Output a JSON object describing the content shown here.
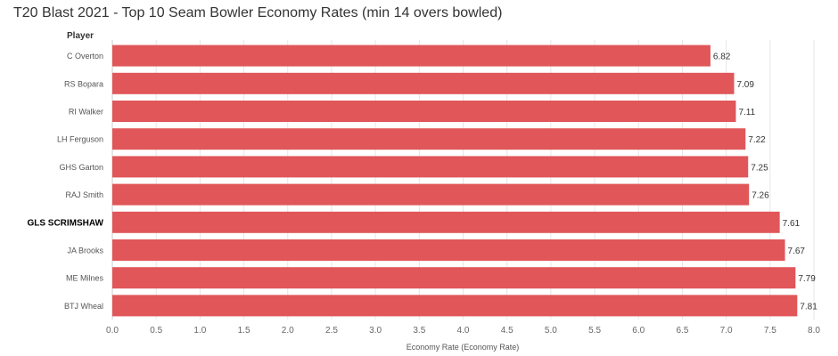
{
  "chart_data": {
    "type": "bar",
    "orientation": "horizontal",
    "title": "T20 Blast 2021 - Top 10 Seam Bowler Economy Rates (min 14 overs bowled)",
    "ylabel": "Player",
    "xlabel": "Economy Rate (Economy Rate)",
    "categories": [
      "C Overton",
      "RS Bopara",
      "RI Walker",
      "LH Ferguson",
      "GHS Garton",
      "RAJ Smith",
      "GLS SCRIMSHAW",
      "JA Brooks",
      "ME Milnes",
      "BTJ Wheal"
    ],
    "values": [
      6.82,
      7.09,
      7.11,
      7.22,
      7.25,
      7.26,
      7.61,
      7.67,
      7.79,
      7.81
    ],
    "data_labels": [
      "6.82",
      "7.09",
      "7.11",
      "7.22",
      "7.25",
      "7.26",
      "7.61",
      "7.67",
      "7.79",
      "7.81"
    ],
    "highlighted_category": "GLS SCRIMSHAW",
    "xlim": [
      0,
      8
    ],
    "x_ticks": [
      "0.0",
      "0.5",
      "1.0",
      "1.5",
      "2.0",
      "2.5",
      "3.0",
      "3.5",
      "4.0",
      "4.5",
      "5.0",
      "5.5",
      "6.0",
      "6.5",
      "7.0",
      "7.5",
      "8.0"
    ],
    "grid": true,
    "bar_color": "#e05659"
  }
}
